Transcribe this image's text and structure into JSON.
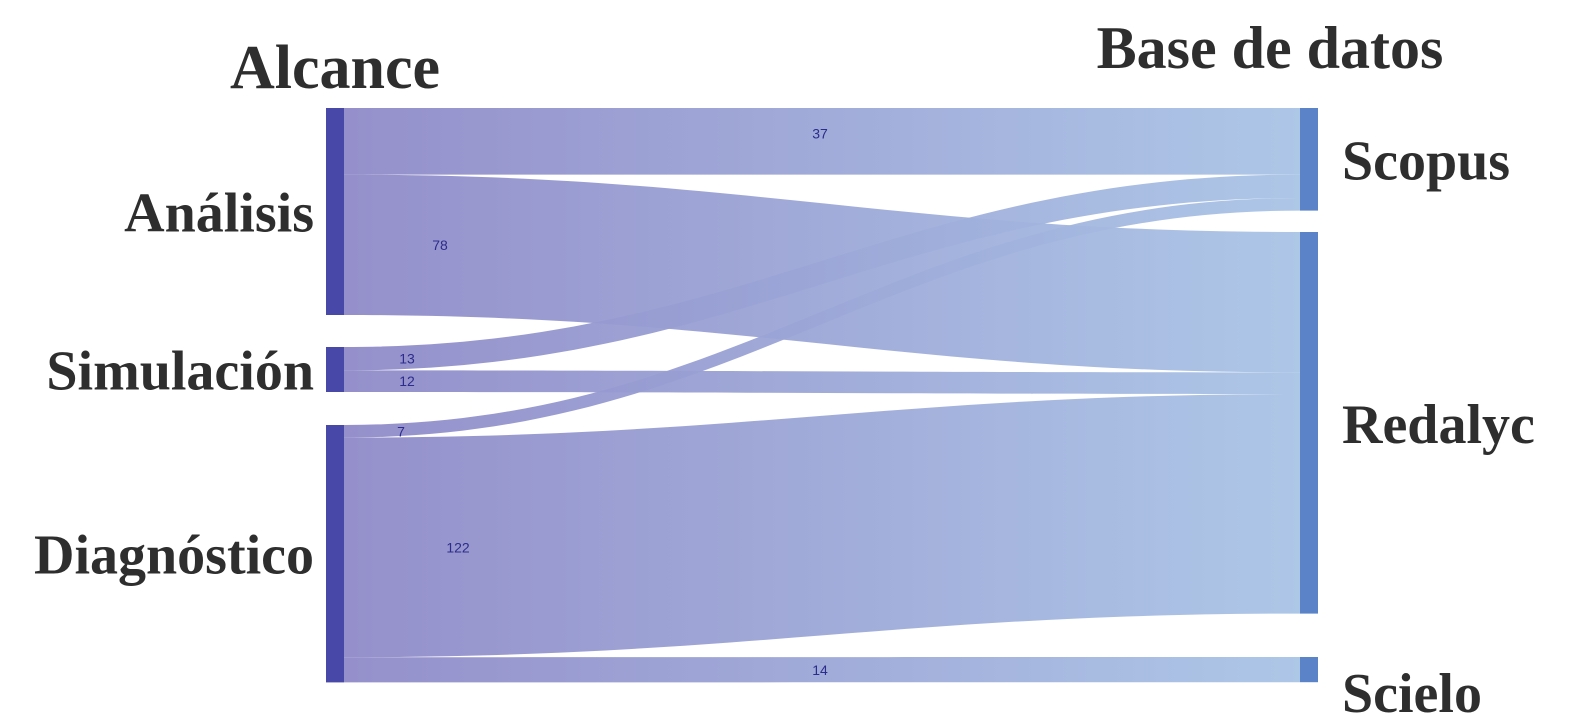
{
  "chart_data": {
    "type": "sankey",
    "left_axis_title": "Alcance",
    "right_axis_title": "Base de datos",
    "left_nodes": [
      "Análisis",
      "Simulación",
      "Diagnóstico"
    ],
    "right_nodes": [
      "Scopus",
      "Redalyc",
      "Scielo"
    ],
    "flows": [
      {
        "source": "Análisis",
        "target": "Scopus",
        "value": 37,
        "label": "37"
      },
      {
        "source": "Análisis",
        "target": "Redalyc",
        "value": 78,
        "label": "78"
      },
      {
        "source": "Simulación",
        "target": "Scopus",
        "value": 13,
        "label": "13"
      },
      {
        "source": "Simulación",
        "target": "Redalyc",
        "value": 12,
        "label": "12"
      },
      {
        "source": "Diagnóstico",
        "target": "Scopus",
        "value": 7,
        "label": "7"
      },
      {
        "source": "Diagnóstico",
        "target": "Redalyc",
        "value": 122,
        "label": "122"
      },
      {
        "source": "Diagnóstico",
        "target": "Scielo",
        "value": 14,
        "label": "14"
      }
    ],
    "colors": {
      "left_node": "#4848a8",
      "right_node": "#5b84c8",
      "flow_start": "#8f8ac8",
      "flow_end": "#a9c4e6",
      "flow_label": "#2c2c8c"
    }
  }
}
